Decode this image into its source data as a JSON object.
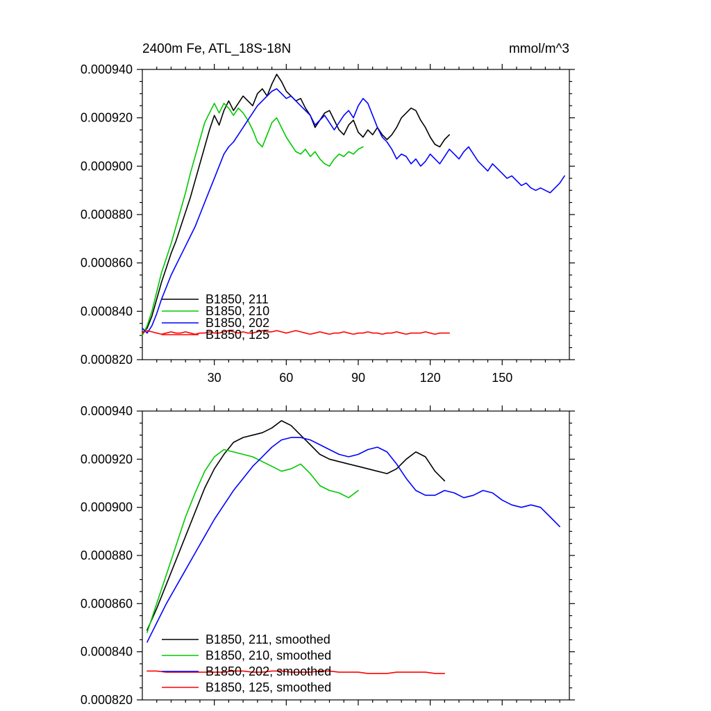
{
  "page": {
    "background": "#ffffff"
  },
  "chart_data": [
    {
      "type": "line",
      "title_left": "2400m Fe, ATL_18S-18N",
      "title_right": "mmol/m^3",
      "x_axis": {
        "min": 0,
        "max": 178,
        "ticks": [
          30,
          60,
          90,
          120,
          150
        ],
        "tick_labels": [
          "30",
          "60",
          "90",
          "120",
          "150"
        ],
        "minor_step": 6
      },
      "y_axis": {
        "min_micro": 820,
        "max_micro": 940,
        "unit_scale": 1e-06,
        "tick_values_micro": [
          820,
          840,
          860,
          880,
          900,
          920,
          940
        ],
        "tick_labels": [
          "0.000820",
          "0.000840",
          "0.000860",
          "0.000880",
          "0.000900",
          "0.000920",
          "0.000940"
        ],
        "minor_step_micro": 5
      },
      "grid": false,
      "legend_position": "inside-lower-left",
      "series": [
        {
          "name": "B1850, 211",
          "color": "#000000",
          "x_start": 0,
          "x_step": 2,
          "y_scale": 1e-06,
          "y_values_micro": [
            831,
            833,
            838,
            845,
            852,
            858,
            864,
            869,
            875,
            881,
            887,
            894,
            901,
            908,
            915,
            921,
            917,
            923,
            927,
            923,
            926,
            929,
            927,
            925,
            930,
            932,
            929,
            934,
            938,
            935,
            931,
            929,
            927,
            928,
            924,
            921,
            916,
            919,
            922,
            923,
            919,
            915,
            913,
            917,
            919,
            914,
            912,
            915,
            913,
            916,
            913,
            911,
            913,
            916,
            920,
            922,
            924,
            923,
            919,
            916,
            912,
            909,
            908,
            911,
            913
          ]
        },
        {
          "name": "B1850, 210",
          "color": "#00c800",
          "x_start": 0,
          "x_step": 2,
          "y_scale": 1e-06,
          "y_values_micro": [
            830,
            834,
            840,
            848,
            856,
            862,
            868,
            875,
            882,
            889,
            897,
            904,
            911,
            918,
            922,
            926,
            922,
            926,
            924,
            921,
            924,
            922,
            919,
            915,
            910,
            908,
            913,
            918,
            920,
            916,
            912,
            909,
            906,
            905,
            907,
            904,
            906,
            903,
            901,
            900,
            903,
            905,
            904,
            906,
            905,
            907,
            908
          ]
        },
        {
          "name": "B1850, 202",
          "color": "#0000ff",
          "x_start": 0,
          "x_step": 2,
          "y_scale": 1e-06,
          "y_values_micro": [
            833,
            831,
            834,
            839,
            845,
            850,
            855,
            859,
            863,
            867,
            871,
            875,
            880,
            885,
            890,
            895,
            900,
            905,
            908,
            910,
            913,
            916,
            919,
            922,
            925,
            927,
            929,
            931,
            932,
            930,
            928,
            929,
            927,
            925,
            923,
            921,
            917,
            919,
            921,
            918,
            915,
            918,
            921,
            923,
            920,
            925,
            928,
            926,
            921,
            916,
            912,
            910,
            907,
            903,
            905,
            904,
            901,
            903,
            900,
            902,
            905,
            903,
            901,
            904,
            907,
            905,
            903,
            906,
            908,
            905,
            902,
            900,
            898,
            901,
            899,
            897,
            895,
            896,
            894,
            892,
            893,
            891,
            890,
            891,
            890,
            889,
            891,
            893,
            896
          ]
        },
        {
          "name": "B1850, 125",
          "color": "#ff0000",
          "x_start": 0,
          "x_step": 2,
          "y_scale": 1e-06,
          "y_values_micro": [
            831,
            832,
            831.5,
            831,
            830.5,
            831,
            831.5,
            831,
            831,
            831.5,
            831,
            830.5,
            831,
            831,
            831.5,
            831,
            831,
            831.5,
            832,
            831.5,
            831,
            831.5,
            831,
            831,
            831.5,
            832,
            831.5,
            831.5,
            832,
            831.5,
            831,
            831.5,
            832,
            831.5,
            831,
            830.5,
            831,
            831.5,
            831,
            830.5,
            831,
            831,
            831.5,
            831,
            830.5,
            831,
            831,
            831.5,
            831,
            831,
            830.5,
            831,
            831,
            831.5,
            831,
            830.5,
            831,
            831,
            831,
            831.5,
            831,
            830.5,
            831,
            831,
            831
          ]
        }
      ],
      "legend": {
        "entries": [
          {
            "label": "B1850, 211",
            "color": "#000000"
          },
          {
            "label": "B1850, 210",
            "color": "#00c800"
          },
          {
            "label": "B1850, 202",
            "color": "#0000ff"
          },
          {
            "label": "B1850, 125",
            "color": "#ff0000"
          }
        ]
      }
    },
    {
      "type": "line",
      "title_left": "",
      "title_right": "",
      "x_axis": {
        "min": 0,
        "max": 178,
        "ticks": [
          30,
          60,
          90,
          120,
          150
        ],
        "tick_labels": [
          "",
          "",
          "",
          "",
          ""
        ],
        "minor_step": 6
      },
      "y_axis": {
        "min_micro": 820,
        "max_micro": 940,
        "unit_scale": 1e-06,
        "tick_values_micro": [
          820,
          840,
          860,
          880,
          900,
          920,
          940
        ],
        "tick_labels": [
          "0.000820",
          "0.000840",
          "0.000860",
          "0.000880",
          "0.000900",
          "0.000920",
          "0.000940"
        ],
        "minor_step_micro": 5
      },
      "grid": false,
      "legend_position": "inside-lower-left",
      "series": [
        {
          "name": "B1850, 211, smoothed",
          "color": "#000000",
          "x_start": 2,
          "x_step": 4,
          "y_scale": 1e-06,
          "y_values_micro": [
            849,
            858,
            868,
            878,
            888,
            898,
            908,
            916,
            922,
            927,
            929,
            930,
            931,
            933,
            936,
            934,
            930,
            926,
            922,
            920,
            919,
            918,
            917,
            916,
            915,
            914,
            916,
            920,
            923,
            921,
            915,
            911
          ]
        },
        {
          "name": "B1850, 210, smoothed",
          "color": "#00c800",
          "x_start": 2,
          "x_step": 4,
          "y_scale": 1e-06,
          "y_values_micro": [
            848,
            860,
            872,
            884,
            896,
            906,
            915,
            921,
            924,
            923,
            922,
            921,
            919,
            917,
            915,
            916,
            918,
            914,
            909,
            907,
            906,
            904,
            907
          ]
        },
        {
          "name": "B1850, 202, smoothed",
          "color": "#0000ff",
          "x_start": 2,
          "x_step": 4,
          "y_scale": 1e-06,
          "y_values_micro": [
            844,
            852,
            860,
            867,
            874,
            881,
            888,
            895,
            901,
            907,
            912,
            917,
            921,
            925,
            928,
            929,
            929,
            928,
            926,
            924,
            922,
            921,
            922,
            924,
            925,
            923,
            918,
            912,
            907,
            905,
            905,
            907,
            906,
            904,
            905,
            907,
            906,
            903,
            901,
            900,
            901,
            900,
            896,
            892
          ]
        },
        {
          "name": "B1850, 125, smoothed",
          "color": "#ff0000",
          "x_start": 2,
          "x_step": 4,
          "y_scale": 1e-06,
          "y_values_micro": [
            832,
            832,
            831.5,
            831.5,
            831.5,
            831.5,
            831.5,
            831.5,
            831.5,
            832,
            832,
            831.5,
            831.5,
            832,
            832,
            831.5,
            831.5,
            831.5,
            832,
            832,
            831.5,
            831.5,
            831.5,
            831,
            831,
            831,
            831.5,
            831.5,
            831.5,
            831.5,
            831,
            831
          ]
        }
      ],
      "legend": {
        "entries": [
          {
            "label": "B1850, 211, smoothed",
            "color": "#000000"
          },
          {
            "label": "B1850, 210, smoothed",
            "color": "#00c800"
          },
          {
            "label": "B1850, 202, smoothed",
            "color": "#0000ff"
          },
          {
            "label": "B1850, 125, smoothed",
            "color": "#ff0000"
          }
        ]
      }
    }
  ]
}
